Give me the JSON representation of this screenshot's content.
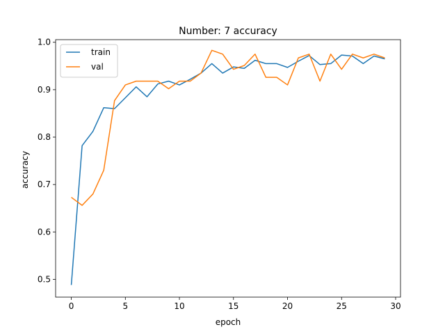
{
  "chart_data": {
    "type": "line",
    "title": "Number: 7 accuracy",
    "xlabel": "epoch",
    "ylabel": "accuracy",
    "xlim": [
      -1.45,
      30.45
    ],
    "ylim": [
      0.4625,
      1.0055
    ],
    "xticks": [
      0,
      5,
      10,
      15,
      20,
      25,
      30
    ],
    "xtick_labels": [
      "0",
      "5",
      "10",
      "15",
      "20",
      "25",
      "30"
    ],
    "yticks": [
      0.5,
      0.6,
      0.7,
      0.8,
      0.9,
      1.0
    ],
    "ytick_labels": [
      "0.5",
      "0.6",
      "0.7",
      "0.8",
      "0.9",
      "1.0"
    ],
    "grid": false,
    "legend_position": "top-left",
    "x": [
      0,
      1,
      2,
      3,
      4,
      5,
      6,
      7,
      8,
      9,
      10,
      11,
      12,
      13,
      14,
      15,
      16,
      17,
      18,
      19,
      20,
      21,
      22,
      23,
      24,
      25,
      26,
      27,
      28,
      29
    ],
    "series": [
      {
        "name": "train",
        "color": "#1f77b4",
        "values": [
          0.488,
          0.782,
          0.812,
          0.862,
          0.86,
          0.883,
          0.906,
          0.885,
          0.912,
          0.918,
          0.91,
          0.922,
          0.935,
          0.955,
          0.935,
          0.948,
          0.945,
          0.962,
          0.955,
          0.955,
          0.947,
          0.96,
          0.972,
          0.953,
          0.955,
          0.973,
          0.971,
          0.955,
          0.971,
          0.965
        ]
      },
      {
        "name": "val",
        "color": "#ff7f0e",
        "values": [
          0.673,
          0.656,
          0.68,
          0.73,
          0.877,
          0.91,
          0.918,
          0.918,
          0.918,
          0.902,
          0.918,
          0.918,
          0.935,
          0.983,
          0.975,
          0.943,
          0.951,
          0.975,
          0.926,
          0.926,
          0.91,
          0.967,
          0.975,
          0.918,
          0.975,
          0.943,
          0.975,
          0.967,
          0.975,
          0.967
        ]
      }
    ]
  }
}
